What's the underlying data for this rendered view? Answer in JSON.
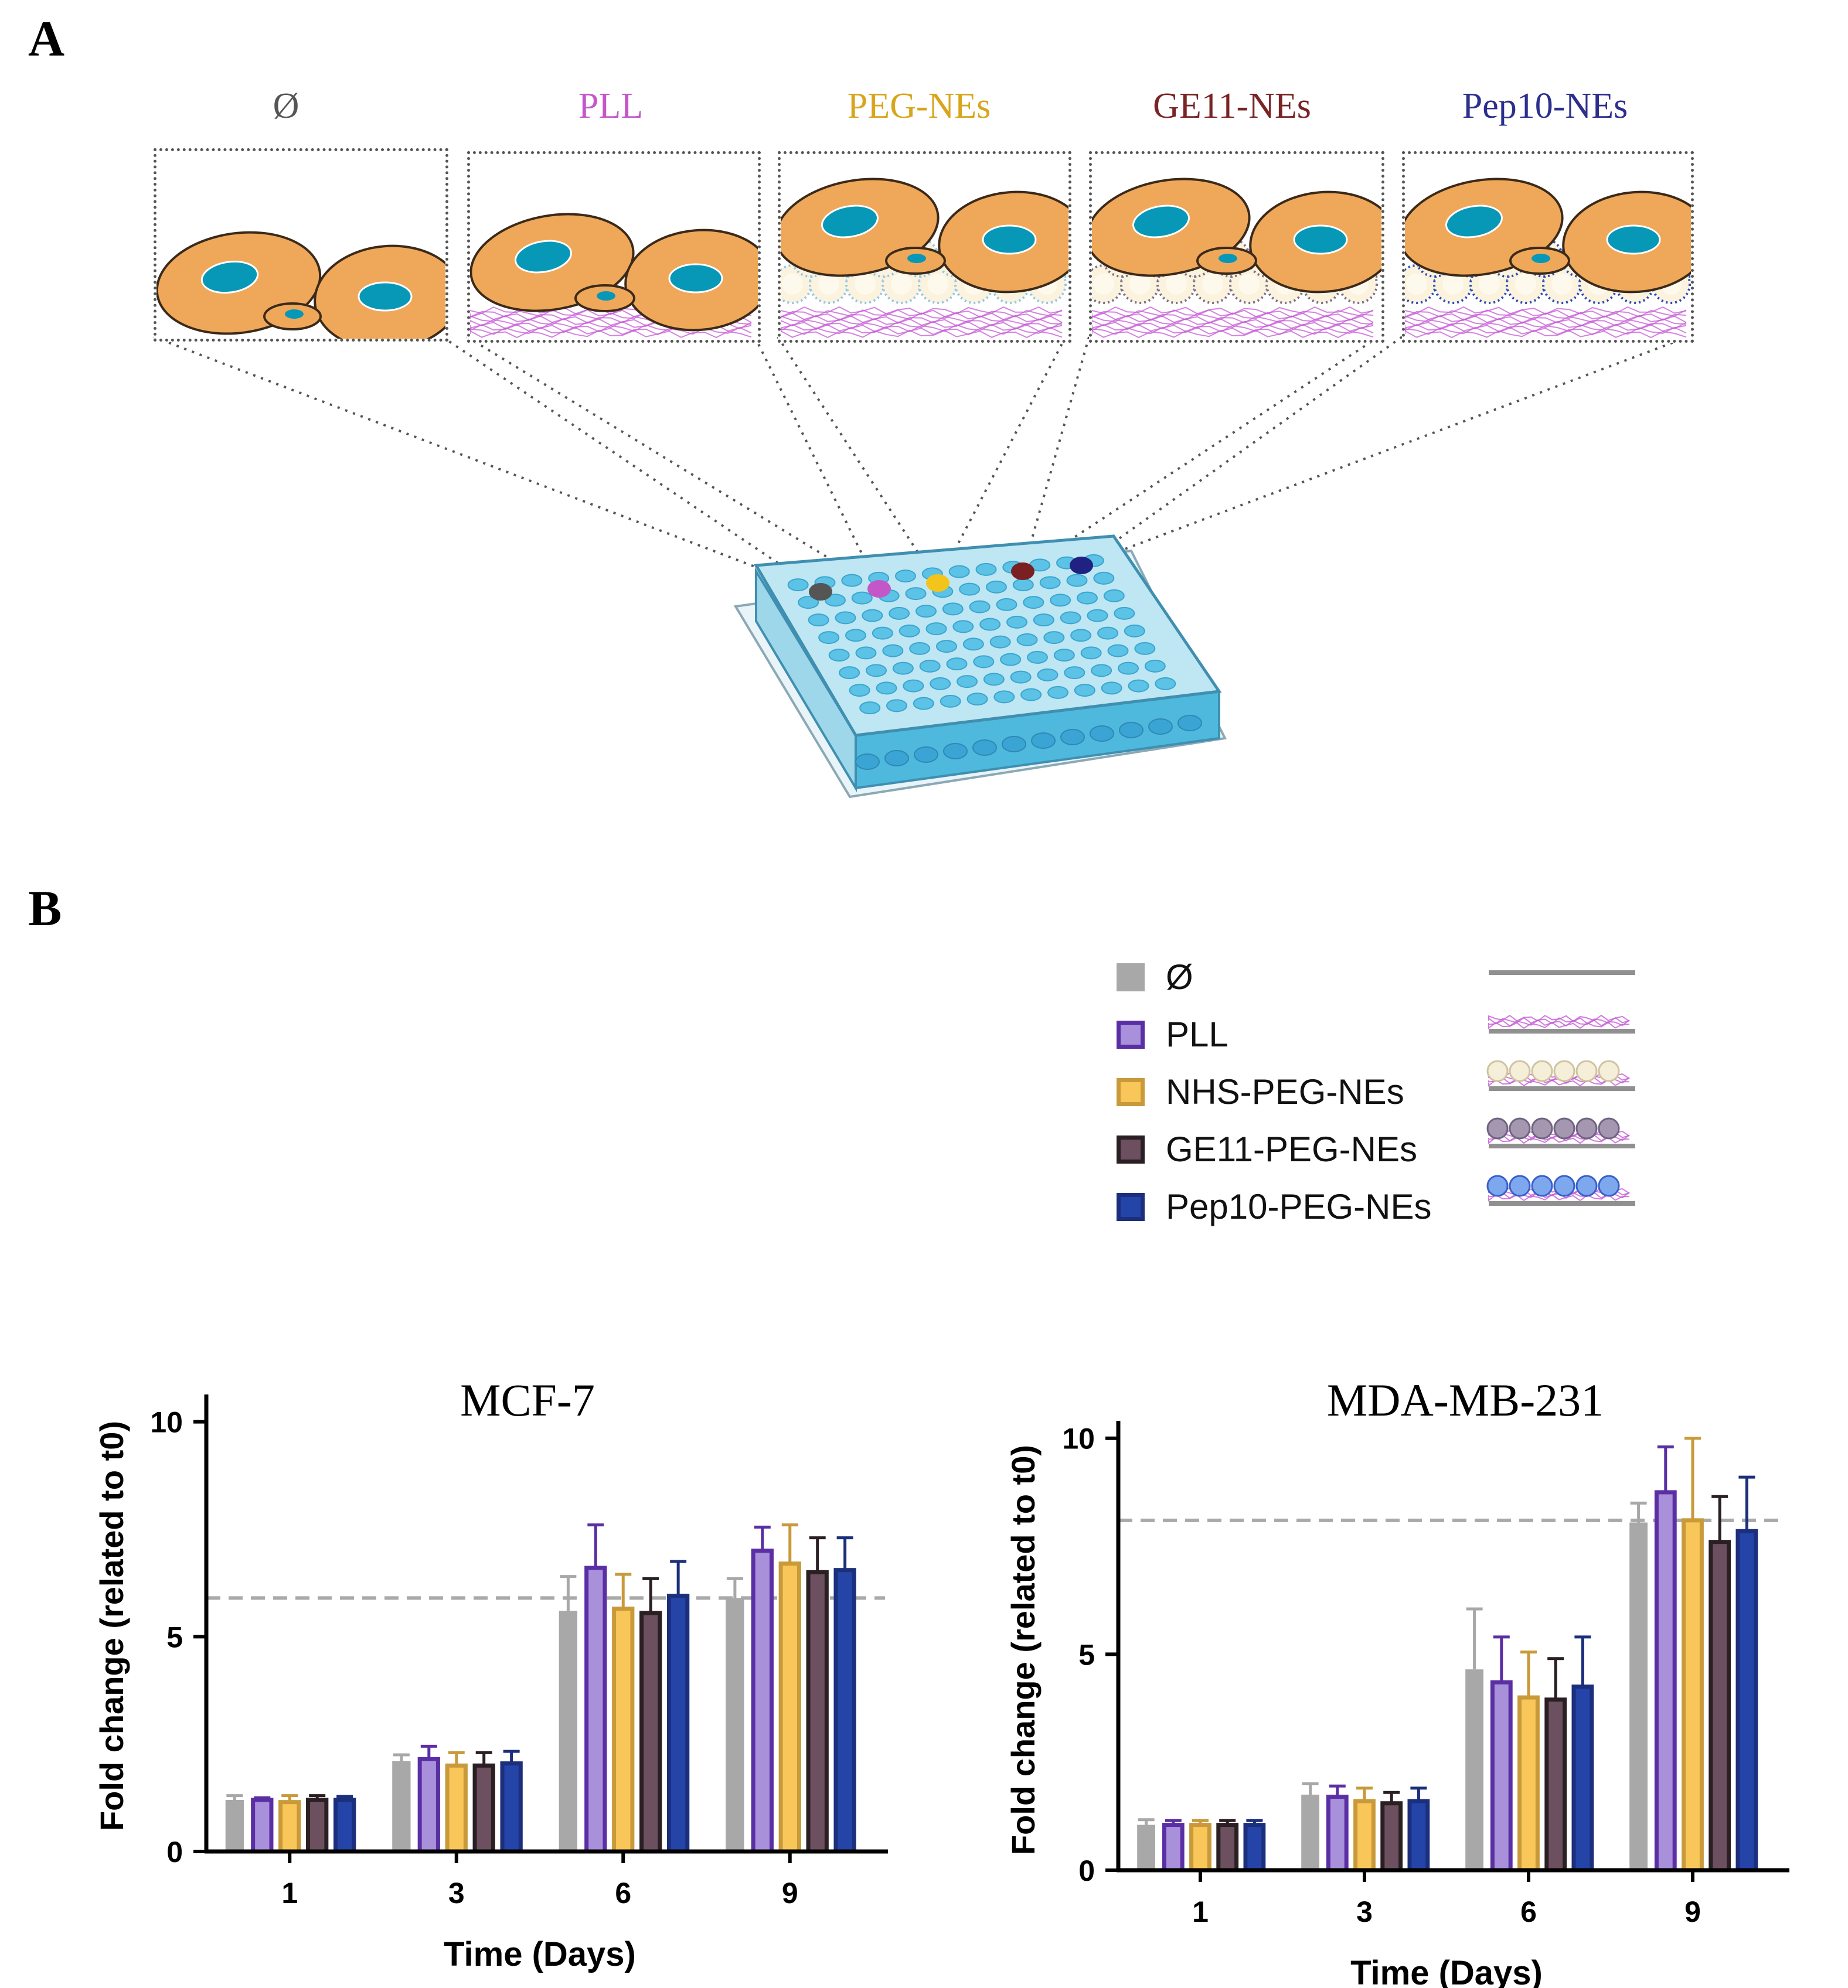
{
  "panel_a": {
    "letter": "A",
    "conditions": [
      {
        "label": "Ø",
        "color": "#555555",
        "dot_color": "#555555"
      },
      {
        "label": "PLL",
        "color": "#c457c8",
        "dot_color": "#c457c8"
      },
      {
        "label": "PEG-NEs",
        "color": "#d8a51c",
        "dot_color": "#f2c41c"
      },
      {
        "label": "GE11-NEs",
        "color": "#7a2425",
        "dot_color": "#7a1f22"
      },
      {
        "label": "Pep10-NEs",
        "color": "#2c2f8c",
        "dot_color": "#1f2280"
      }
    ]
  },
  "panel_b": {
    "letter": "B",
    "legend": [
      {
        "label": "Ø",
        "fill": "#a8a8a8",
        "border": "#a8a8a8"
      },
      {
        "label": "PLL",
        "fill": "#a890da",
        "border": "#5b2fa4"
      },
      {
        "label": "NHS-PEG-NEs",
        "fill": "#f9c65a",
        "border": "#c99a3a"
      },
      {
        "label": "GE11-PEG-NEs",
        "fill": "#6d5060",
        "border": "#2a1f22"
      },
      {
        "label": "Pep10-PEG-NEs",
        "fill": "#2444a8",
        "border": "#1c2f7c"
      }
    ]
  },
  "chart_data": [
    {
      "type": "bar",
      "title": "MCF-7",
      "xlabel": "Time (Days)",
      "ylabel": "Fold change (related to t0)",
      "categories": [
        "1",
        "3",
        "6",
        "9"
      ],
      "ylim": [
        0,
        10.5
      ],
      "yticks": [
        0,
        5,
        10
      ],
      "reference_line": 5.9,
      "series": [
        {
          "name": "Ø",
          "values": [
            1.2,
            2.1,
            5.6,
            5.9
          ],
          "errors": [
            0.1,
            0.15,
            0.8,
            0.45
          ]
        },
        {
          "name": "PLL",
          "values": [
            1.2,
            2.15,
            6.6,
            7.0
          ],
          "errors": [
            0.05,
            0.3,
            1.0,
            0.55
          ]
        },
        {
          "name": "NHS-PEG-NEs",
          "values": [
            1.15,
            2.0,
            5.65,
            6.7
          ],
          "errors": [
            0.15,
            0.3,
            0.8,
            0.9
          ]
        },
        {
          "name": "GE11-PEG-NEs",
          "values": [
            1.2,
            2.0,
            5.55,
            6.5
          ],
          "errors": [
            0.1,
            0.3,
            0.8,
            0.8
          ]
        },
        {
          "name": "Pep10-PEG-NEs",
          "values": [
            1.2,
            2.05,
            5.95,
            6.55
          ],
          "errors": [
            0.08,
            0.28,
            0.8,
            0.75
          ]
        }
      ]
    },
    {
      "type": "bar",
      "title": "MDA-MB-231",
      "xlabel": "Time (Days)",
      "ylabel": "Fold change (related to t0)",
      "categories": [
        "1",
        "3",
        "6",
        "9"
      ],
      "ylim": [
        0,
        10.2
      ],
      "yticks": [
        0,
        5,
        10
      ],
      "reference_line": 8.1,
      "series": [
        {
          "name": "Ø",
          "values": [
            1.05,
            1.75,
            4.65,
            8.05
          ],
          "errors": [
            0.12,
            0.25,
            1.4,
            0.45
          ]
        },
        {
          "name": "PLL",
          "values": [
            1.05,
            1.7,
            4.35,
            8.75
          ],
          "errors": [
            0.1,
            0.25,
            1.05,
            1.05
          ]
        },
        {
          "name": "NHS-PEG-NEs",
          "values": [
            1.05,
            1.6,
            4.0,
            8.1
          ],
          "errors": [
            0.1,
            0.3,
            1.05,
            1.9
          ]
        },
        {
          "name": "GE11-PEG-NEs",
          "values": [
            1.05,
            1.55,
            3.95,
            7.6
          ],
          "errors": [
            0.1,
            0.25,
            0.95,
            1.05
          ]
        },
        {
          "name": "Pep10-PEG-NEs",
          "values": [
            1.05,
            1.6,
            4.25,
            7.85
          ],
          "errors": [
            0.1,
            0.3,
            1.15,
            1.25
          ]
        }
      ]
    }
  ]
}
